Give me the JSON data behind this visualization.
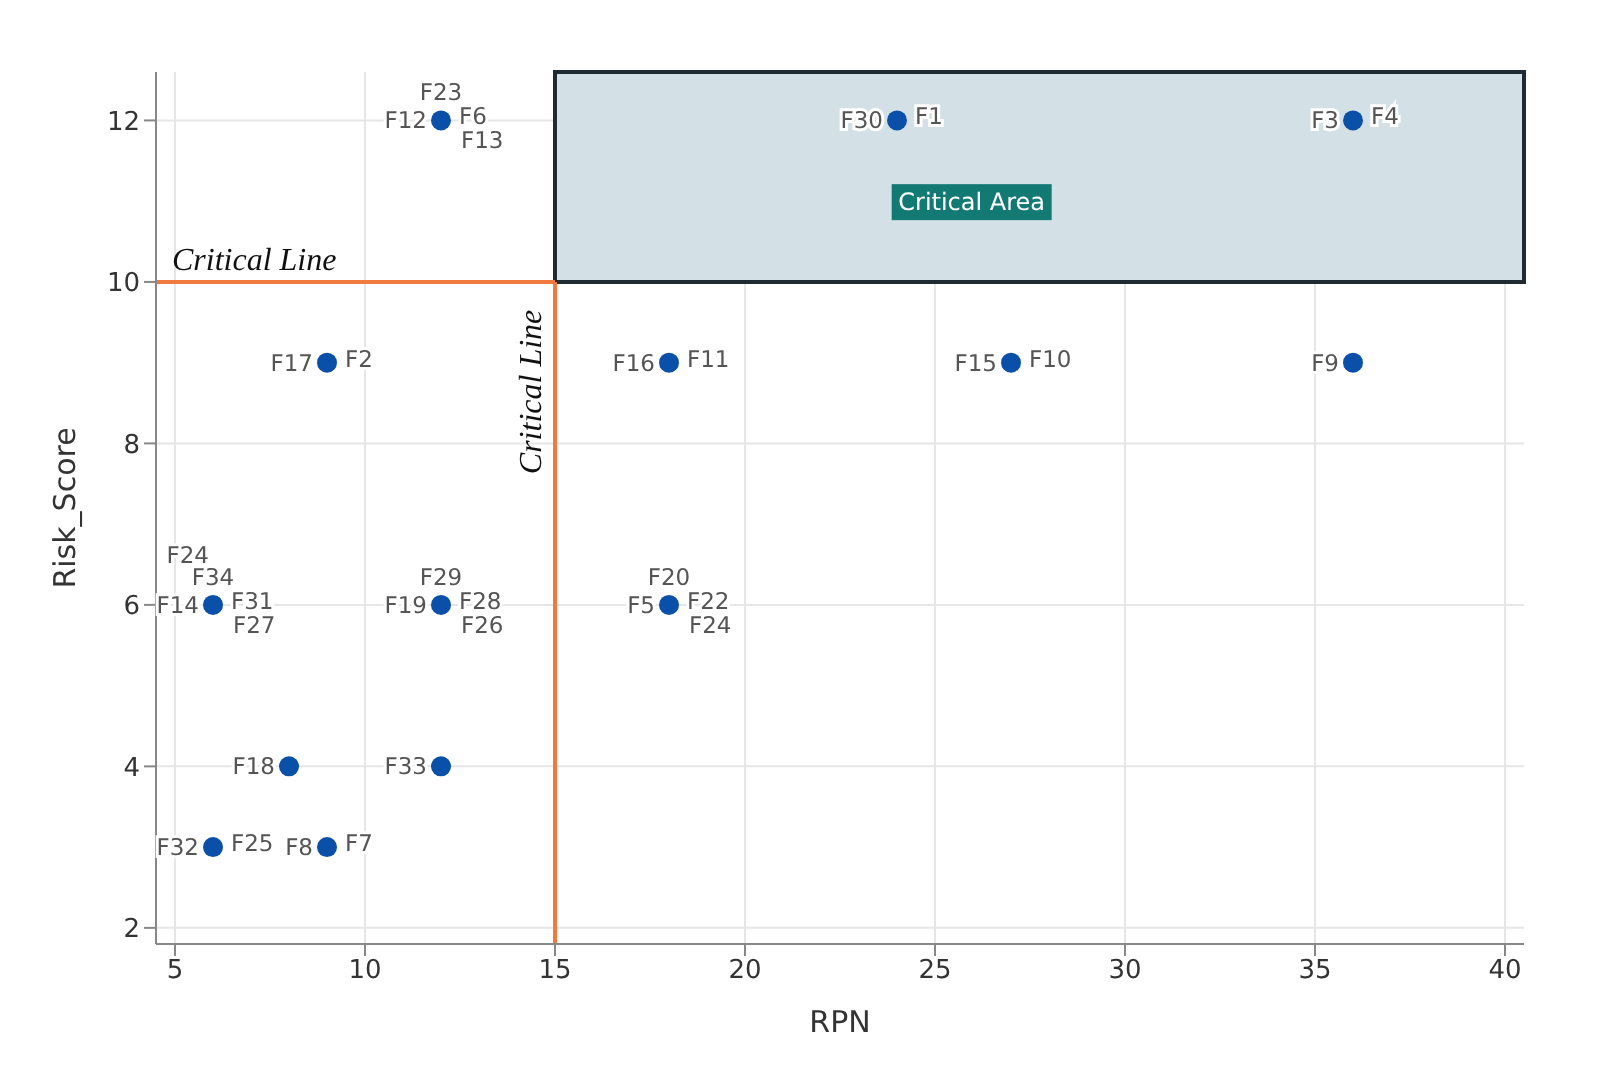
{
  "chart_data": {
    "type": "scatter",
    "xlabel": "RPN",
    "ylabel": "Risk_Score",
    "x": [
      12,
      24,
      36,
      9,
      18,
      27,
      36,
      6,
      12,
      18,
      8,
      12,
      6,
      9
    ],
    "values": [
      12,
      12,
      12,
      9,
      9,
      9,
      9,
      6,
      6,
      6,
      4,
      4,
      3,
      3
    ],
    "color": "#0a4fa8",
    "marker": "circle",
    "grid": true,
    "xlim": [
      4.5,
      40.5
    ],
    "xticks": [
      5,
      10,
      15,
      20,
      25,
      30,
      35,
      40
    ],
    "ylim": [
      1.8,
      12.6
    ],
    "yticks": [
      2,
      4,
      6,
      8,
      10,
      12
    ],
    "ref_lines": [
      {
        "axis": "x",
        "value": 15,
        "label": "Critical Line",
        "color": "#f07b3f"
      },
      {
        "axis": "y",
        "value": 10,
        "label": "Critical Line",
        "color": "#f07b3f"
      }
    ],
    "bands": [
      {
        "axis": "y",
        "from": 10,
        "to": 12.6,
        "label": "Critical Area",
        "color": "#d3e0e6"
      }
    ],
    "annotations": [
      {
        "text": "F12",
        "x": 12,
        "y": 12
      },
      {
        "text": "F6",
        "x": 12,
        "y": 12
      },
      {
        "text": "F23",
        "x": 12,
        "y": 12
      },
      {
        "text": "F13",
        "x": 12,
        "y": 12
      },
      {
        "text": "F30",
        "x": 24,
        "y": 12
      },
      {
        "text": "F1",
        "x": 24,
        "y": 12
      },
      {
        "text": "F3",
        "x": 36,
        "y": 12
      },
      {
        "text": "F4",
        "x": 36,
        "y": 12
      },
      {
        "text": "F17",
        "x": 9,
        "y": 9
      },
      {
        "text": "F2",
        "x": 9,
        "y": 9
      },
      {
        "text": "F16",
        "x": 18,
        "y": 9
      },
      {
        "text": "F11",
        "x": 18,
        "y": 9
      },
      {
        "text": "F15",
        "x": 27,
        "y": 9
      },
      {
        "text": "F10",
        "x": 27,
        "y": 9
      },
      {
        "text": "F9",
        "x": 36,
        "y": 9
      },
      {
        "text": "F14",
        "x": 6,
        "y": 6
      },
      {
        "text": "F31",
        "x": 6,
        "y": 6
      },
      {
        "text": "F34",
        "x": 6,
        "y": 6
      },
      {
        "text": "F27",
        "x": 6,
        "y": 6
      },
      {
        "text": "F24",
        "x": 6,
        "y": 6
      },
      {
        "text": "F19",
        "x": 12,
        "y": 6
      },
      {
        "text": "F28",
        "x": 12,
        "y": 6
      },
      {
        "text": "F29",
        "x": 12,
        "y": 6
      },
      {
        "text": "F26",
        "x": 12,
        "y": 6
      },
      {
        "text": "F5",
        "x": 18,
        "y": 6
      },
      {
        "text": "F22",
        "x": 18,
        "y": 6
      },
      {
        "text": "F20",
        "x": 18,
        "y": 6
      },
      {
        "text": "F24",
        "x": 18,
        "y": 6
      },
      {
        "text": "F18",
        "x": 8,
        "y": 4
      },
      {
        "text": "F33",
        "x": 12,
        "y": 4
      },
      {
        "text": "F32",
        "x": 6,
        "y": 3
      },
      {
        "text": "F25",
        "x": 6,
        "y": 3
      },
      {
        "text": "F8",
        "x": 9,
        "y": 3
      },
      {
        "text": "F7",
        "x": 9,
        "y": 3
      }
    ]
  }
}
